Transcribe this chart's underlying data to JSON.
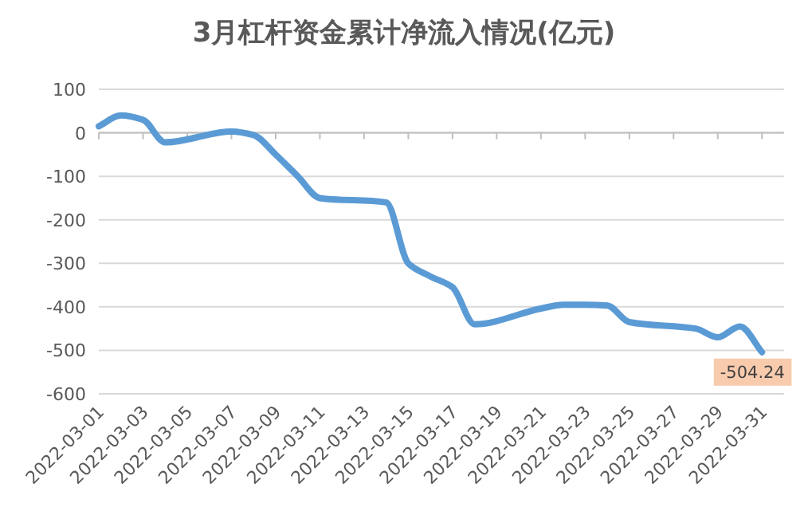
{
  "chart_data": {
    "type": "line",
    "title": "3月杠杆资金累计净流入情况(亿元)",
    "x": [
      "2022-03-01",
      "2022-03-02",
      "2022-03-03",
      "2022-03-04",
      "2022-03-07",
      "2022-03-08",
      "2022-03-09",
      "2022-03-10",
      "2022-03-11",
      "2022-03-14",
      "2022-03-15",
      "2022-03-16",
      "2022-03-17",
      "2022-03-18",
      "2022-03-21",
      "2022-03-22",
      "2022-03-23",
      "2022-03-24",
      "2022-03-25",
      "2022-03-28",
      "2022-03-29",
      "2022-03-30",
      "2022-03-31"
    ],
    "series": [
      {
        "color": "#5b9bd5",
        "values": [
          15,
          40,
          30,
          -22,
          3,
          -5,
          -50,
          -100,
          -150,
          -160,
          -300,
          -330,
          -355,
          -440,
          -404,
          -395,
          -395,
          -397,
          -435,
          -450,
          -470,
          -445,
          -504.24
        ],
        "value_labels": [
          null,
          null,
          null,
          null,
          null,
          null,
          null,
          null,
          null,
          null,
          null,
          null,
          null,
          null,
          null,
          null,
          null,
          null,
          null,
          null,
          null,
          null,
          "-504.24"
        ]
      }
    ],
    "xlim": [
      "2022-03-01",
      "2022-04-01"
    ],
    "xticks": [
      "2022-03-01",
      "2022-03-03",
      "2022-03-05",
      "2022-03-07",
      "2022-03-09",
      "2022-03-11",
      "2022-03-13",
      "2022-03-15",
      "2022-03-17",
      "2022-03-19",
      "2022-03-21",
      "2022-03-23",
      "2022-03-25",
      "2022-03-27",
      "2022-03-29",
      "2022-03-31"
    ],
    "ylim": [
      -600,
      100
    ],
    "yticks": [
      -600,
      -500,
      -400,
      -300,
      -200,
      -100,
      0,
      100
    ],
    "grid": "y",
    "marker": "none",
    "line_style": "solid"
  }
}
